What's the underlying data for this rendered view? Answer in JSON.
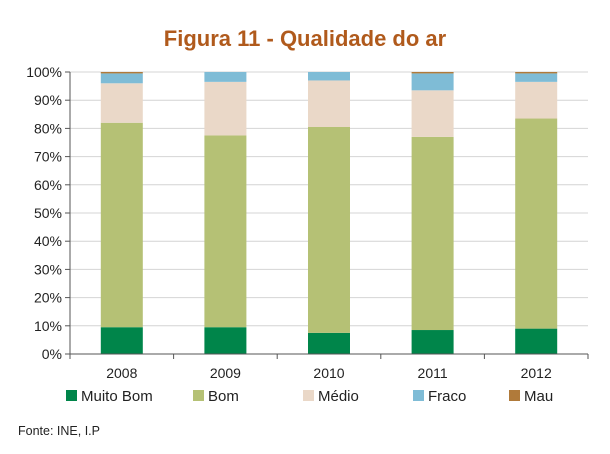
{
  "chart_data": {
    "type": "bar",
    "stacked": true,
    "title": "Figura 11 - Qualidade do ar",
    "categories": [
      "2008",
      "2009",
      "2010",
      "2011",
      "2012"
    ],
    "series": [
      {
        "name": "Muito Bom",
        "color": "#00854a",
        "values": [
          9.5,
          9.5,
          7.5,
          8.5,
          9.0
        ]
      },
      {
        "name": "Bom",
        "color": "#b5c175",
        "values": [
          72.5,
          68.0,
          73.0,
          68.5,
          74.5
        ]
      },
      {
        "name": "Médio",
        "color": "#ead8c8",
        "values": [
          14.0,
          19.0,
          16.5,
          16.5,
          13.0
        ]
      },
      {
        "name": "Fraco",
        "color": "#7fbcd6",
        "values": [
          3.5,
          3.5,
          3.0,
          6.0,
          3.0
        ]
      },
      {
        "name": "Mau",
        "color": "#b07a3a",
        "values": [
          0.5,
          0.0,
          0.0,
          0.5,
          0.5
        ]
      }
    ],
    "yticks": [
      "0%",
      "10%",
      "20%",
      "30%",
      "40%",
      "50%",
      "60%",
      "70%",
      "80%",
      "90%",
      "100%"
    ],
    "ylim": [
      0,
      100
    ],
    "grid": true,
    "legend_position": "bottom",
    "source": "Fonte: INE, I.P",
    "title_color": "#b05a1c"
  }
}
